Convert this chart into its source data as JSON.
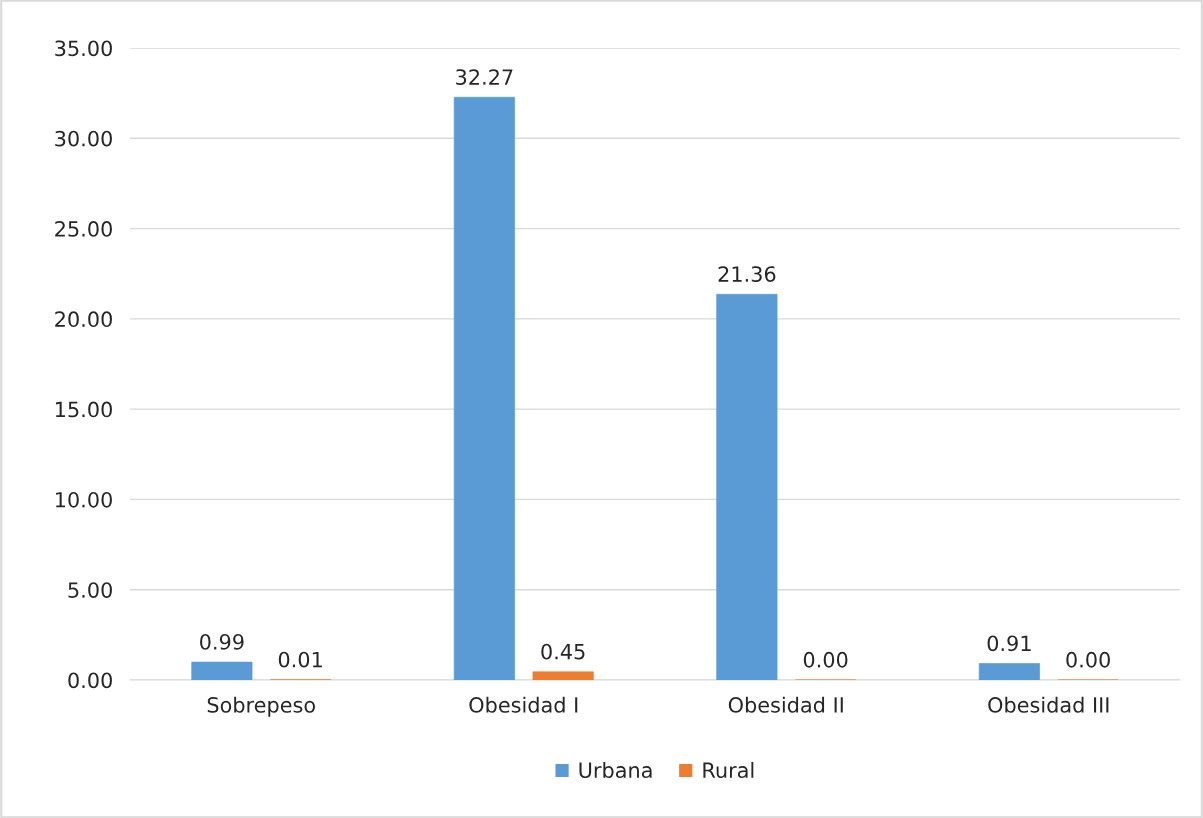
{
  "chart_data": {
    "type": "bar",
    "categories": [
      "Sobrepeso",
      "Obesidad I",
      "Obesidad II",
      "Obesidad III"
    ],
    "series": [
      {
        "name": "Urbana",
        "color": "#5b9bd5",
        "values": [
          0.99,
          32.27,
          21.36,
          0.91
        ],
        "value_labels": [
          "0.99",
          "32.27",
          "21.36",
          "0.91"
        ]
      },
      {
        "name": "Rural",
        "color": "#ed7d31",
        "values": [
          0.01,
          0.45,
          0.0,
          0.0
        ],
        "value_labels": [
          "0.01",
          "0.45",
          "0.00",
          "0.00"
        ]
      }
    ],
    "ylim": [
      0,
      35
    ],
    "yticks": [
      {
        "value": 0,
        "label": "0.00"
      },
      {
        "value": 5,
        "label": "5.00"
      },
      {
        "value": 10,
        "label": "10.00"
      },
      {
        "value": 15,
        "label": "15.00"
      },
      {
        "value": 20,
        "label": "20.00"
      },
      {
        "value": 25,
        "label": "25.00"
      },
      {
        "value": 30,
        "label": "30.00"
      },
      {
        "value": 35,
        "label": "35.00"
      }
    ],
    "grid": "y",
    "legend": "bottom"
  }
}
